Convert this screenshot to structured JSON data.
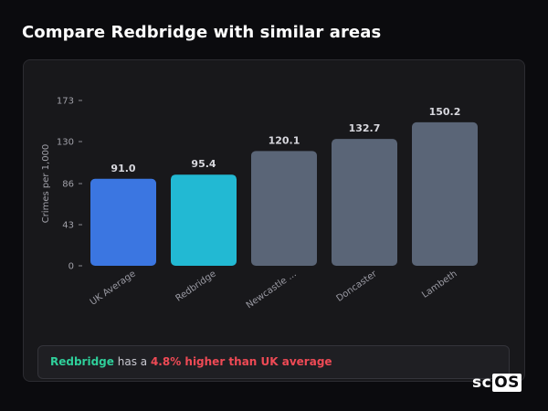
{
  "header": {
    "title": "Compare Redbridge with similar areas"
  },
  "chart_data": {
    "type": "bar",
    "title": "",
    "xlabel": "",
    "ylabel": "Crimes per 1,000",
    "categories": [
      "UK Average",
      "Redbridge",
      "Newcastle ...",
      "Doncaster",
      "Lambeth"
    ],
    "values": [
      91.0,
      95.4,
      120.1,
      132.7,
      150.2
    ],
    "value_labels": [
      "91.0",
      "95.4",
      "120.1",
      "132.7",
      "150.2"
    ],
    "yticks": [
      0,
      43,
      86,
      130,
      173
    ],
    "ylim": [
      0,
      173
    ],
    "grid": false,
    "legend": "none",
    "bar_colors": [
      "#3b76e1",
      "#22b9d3",
      "#5a6577",
      "#5a6577",
      "#5a6577"
    ]
  },
  "summary": {
    "area": "Redbridge",
    "middle": " has a ",
    "delta": "4.8% higher than UK average"
  },
  "brand": {
    "prefix": "sc",
    "suffix": "OS"
  },
  "colors": {
    "background": "#0b0b0e",
    "card": "#18181b",
    "area_highlight": "#2fcf9a",
    "delta_highlight": "#ef4a55"
  }
}
